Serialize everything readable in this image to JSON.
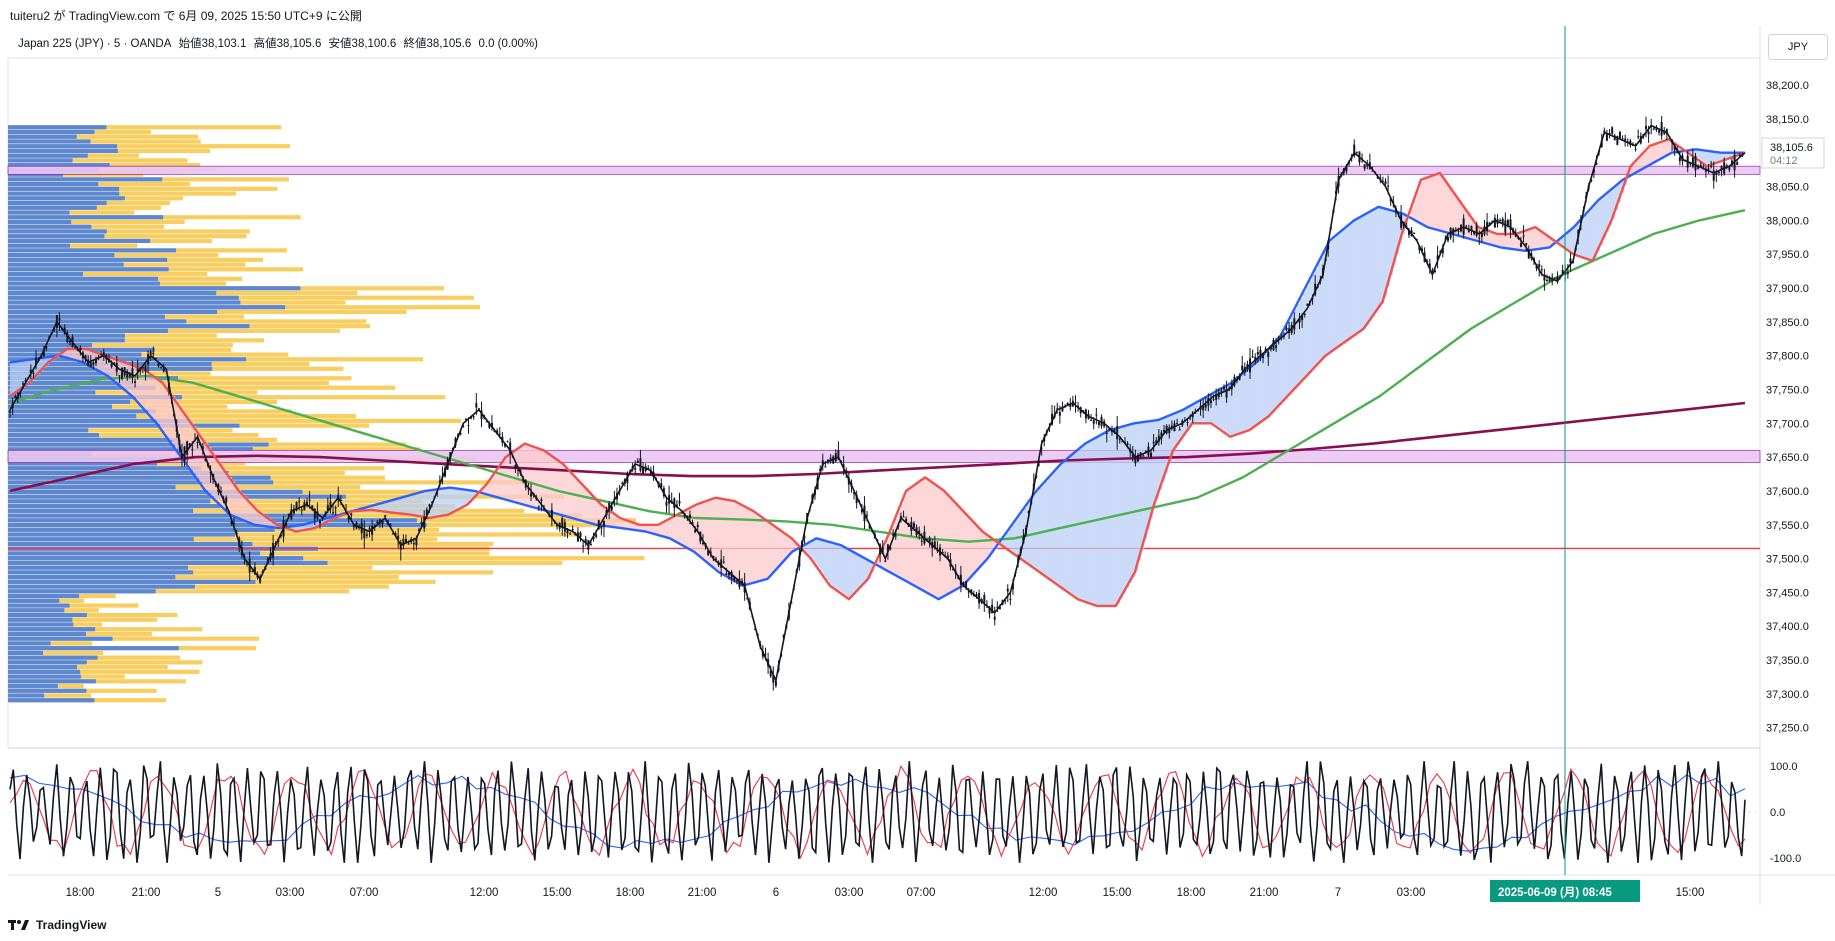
{
  "header": {
    "text": "tuiteru2 が TradingView.com で 6月 09, 2025 15:50 UTC+9 に公開"
  },
  "legend": {
    "symbol": "Japan 225 (JPY) · 5 · OANDA",
    "open": "始値38,103.1",
    "high": "高値38,105.6",
    "low": "安値38,100.6",
    "close": "終値38,105.6",
    "change": "0.0 (0.00%)"
  },
  "currency_button": "JPY",
  "price_label": {
    "value": "38,105.6",
    "countdown": "04:12"
  },
  "crosshair_time_label": "2025-06-09 (月)   08:45",
  "footer": {
    "brand": "TradingView"
  },
  "colors": {
    "candle": "#131722",
    "ema_fast": "#ef5350",
    "ema_slow": "#2962ff",
    "ma_mid": "#4caf50",
    "ma_long": "#880e4f",
    "cloud_up": "#fccbcd",
    "cloud_down": "#bbd0f5",
    "vp_up": "#f7c544",
    "vp_down": "#4a7fe0",
    "hline": "#f23645",
    "zone": "#e9c7f2",
    "crosshair": "#089981"
  },
  "chart_data": [
    {
      "type": "line",
      "title": "",
      "x_ticks": [
        "18:00",
        "21:00",
        "5",
        "03:00",
        "07:00",
        "12:00",
        "15:00",
        "18:00",
        "21:00",
        "6",
        "03:00",
        "07:00",
        "12:00",
        "15:00",
        "18:00",
        "21:00",
        "7",
        "03:00",
        "12:00",
        "15:00"
      ],
      "y_ticks": [
        "38,200.0",
        "38,150.0",
        "38,100.0",
        "38,050.0",
        "38,000.0",
        "37,950.0",
        "37,900.0",
        "37,850.0",
        "37,800.0",
        "37,750.0",
        "37,700.0",
        "37,650.0",
        "37,600.0",
        "37,550.0",
        "37,500.0",
        "37,450.0",
        "37,400.0",
        "37,350.0",
        "37,300.0",
        "37,250.0"
      ],
      "ylim": [
        37220,
        38240
      ],
      "series": [
        {
          "key": "price",
          "values": [
            37720,
            37760,
            37800,
            37850,
            37820,
            37790,
            37800,
            37780,
            37770,
            37800,
            37780,
            37650,
            37680,
            37620,
            37570,
            37500,
            37470,
            37520,
            37570,
            37580,
            37560,
            37590,
            37550,
            37540,
            37560,
            37520,
            37530,
            37580,
            37640,
            37700,
            37720,
            37690,
            37660,
            37610,
            37580,
            37550,
            37540,
            37520,
            37560,
            37600,
            37640,
            37630,
            37590,
            37570,
            37540,
            37500,
            37480,
            37460,
            37370,
            37320,
            37440,
            37560,
            37640,
            37650,
            37600,
            37550,
            37500,
            37560,
            37540,
            37520,
            37500,
            37460,
            37440,
            37420,
            37450,
            37540,
            37670,
            37720,
            37730,
            37710,
            37700,
            37680,
            37650,
            37660,
            37690,
            37700,
            37720,
            37740,
            37750,
            37780,
            37800,
            37820,
            37840,
            37870,
            37920,
            38060,
            38100,
            38080,
            38050,
            38000,
            37970,
            37920,
            37980,
            37990,
            37980,
            38000,
            37990,
            37960,
            37920,
            37910,
            37940,
            38050,
            38130,
            38120,
            38110,
            38140,
            38130,
            38090,
            38080,
            38070,
            38080,
            38100
          ]
        },
        {
          "key": "ema_fast",
          "values": [
            37740,
            37760,
            37790,
            37810,
            37810,
            37800,
            37790,
            37780,
            37760,
            37720,
            37680,
            37640,
            37600,
            37570,
            37550,
            37540,
            37545,
            37560,
            37570,
            37572,
            37568,
            37565,
            37560,
            37565,
            37580,
            37610,
            37650,
            37670,
            37660,
            37640,
            37610,
            37580,
            37560,
            37550,
            37550,
            37565,
            37580,
            37590,
            37585,
            37570,
            37550,
            37530,
            37500,
            37460,
            37440,
            37470,
            37530,
            37600,
            37620,
            37600,
            37570,
            37540,
            37520,
            37500,
            37480,
            37460,
            37440,
            37430,
            37430,
            37480,
            37580,
            37660,
            37700,
            37700,
            37680,
            37690,
            37710,
            37740,
            37770,
            37800,
            37820,
            37840,
            37880,
            37980,
            38060,
            38070,
            38030,
            37990,
            37980,
            37980,
            37990,
            37970,
            37950,
            37940,
            38000,
            38080,
            38110,
            38120,
            38100,
            38080,
            38090,
            38100
          ]
        },
        {
          "key": "ema_slow",
          "values": [
            37790,
            37795,
            37800,
            37790,
            37770,
            37740,
            37700,
            37650,
            37600,
            37565,
            37550,
            37545,
            37550,
            37560,
            37570,
            37580,
            37590,
            37600,
            37605,
            37600,
            37590,
            37580,
            37570,
            37560,
            37550,
            37545,
            37540,
            37530,
            37510,
            37480,
            37460,
            37470,
            37510,
            37530,
            37520,
            37500,
            37480,
            37460,
            37440,
            37460,
            37500,
            37550,
            37600,
            37640,
            37670,
            37690,
            37700,
            37705,
            37720,
            37740,
            37760,
            37790,
            37830,
            37900,
            37970,
            38000,
            38020,
            38010,
            37990,
            37980,
            37970,
            37960,
            37955,
            37960,
            37990,
            38030,
            38060,
            38080,
            38100,
            38105,
            38100,
            38100
          ]
        },
        {
          "key": "ma_mid",
          "values": [
            37730,
            37750,
            37765,
            37770,
            37760,
            37740,
            37720,
            37700,
            37680,
            37660,
            37640,
            37620,
            37600,
            37585,
            37570,
            37560,
            37558,
            37555,
            37550,
            37540,
            37530,
            37525,
            37530,
            37545,
            37560,
            37575,
            37590,
            37620,
            37660,
            37700,
            37740,
            37790,
            37840,
            37880,
            37920,
            37950,
            37980,
            38000,
            38015
          ]
        },
        {
          "key": "ma_long",
          "values": [
            37600,
            37620,
            37640,
            37650,
            37652,
            37650,
            37645,
            37640,
            37635,
            37630,
            37625,
            37622,
            37622,
            37625,
            37630,
            37635,
            37640,
            37645,
            37648,
            37650,
            37655,
            37662,
            37670,
            37680,
            37690,
            37700,
            37710,
            37720,
            37730
          ]
        }
      ]
    },
    {
      "type": "line",
      "title": "",
      "y_ticks": [
        "100.0",
        "0.0",
        "-100.0"
      ],
      "ylim": [
        -130,
        130
      ]
    }
  ]
}
